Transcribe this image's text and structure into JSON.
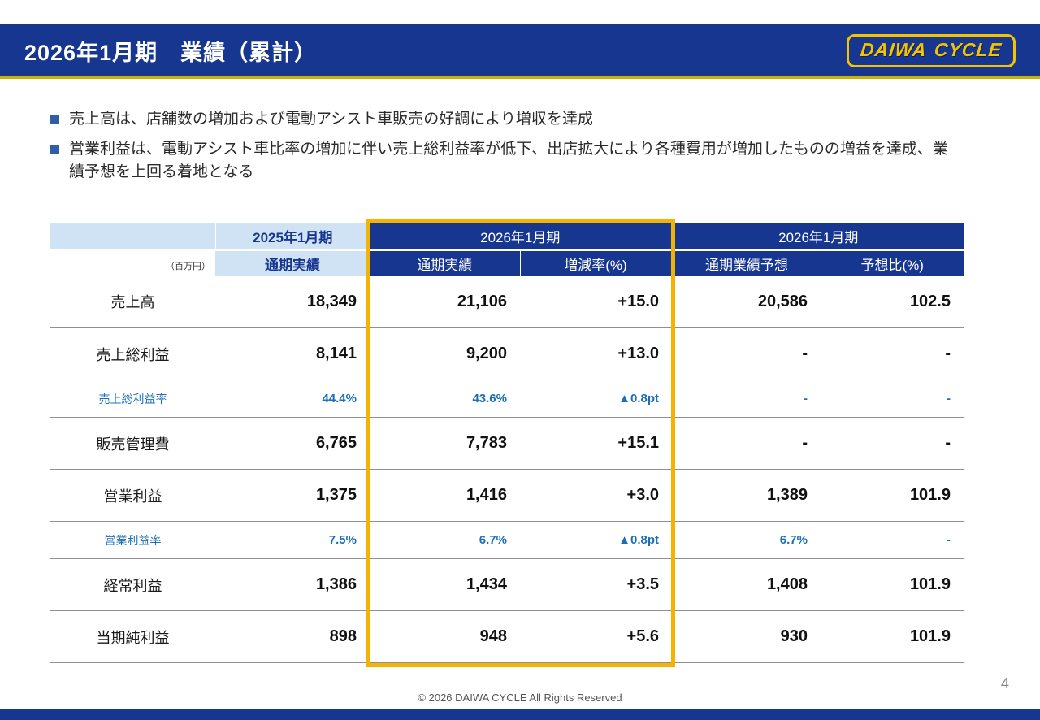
{
  "page": {
    "title": "2026年1月期　業績（累計）",
    "page_number": "4",
    "footer": "© 2026 DAIWA CYCLE All Rights Reserved"
  },
  "logo": {
    "daiwa": "DAIWA",
    "cycle": "CYCLE"
  },
  "bullets": [
    "売上高は、店舗数の増加および電動アシスト車販売の好調により増収を達成",
    "営業利益は、電動アシスト車比率の増加に伴い売上総利益率が低下、出店拡大により各種費用が増加したものの増益を達成、業績予想を上回る着地となる"
  ],
  "table": {
    "unit_label": "（百万円）",
    "col_groups": [
      {
        "label": "2025年1月期"
      },
      {
        "label": "2026年1月期"
      },
      {
        "label": "2026年1月期"
      }
    ],
    "col_headers": [
      "通期実績",
      "通期実績",
      "増減率(%)",
      "通期業績予想",
      "予想比(%)"
    ],
    "rows": [
      {
        "label": "売上高",
        "type": "normal",
        "values": [
          "18,349",
          "21,106",
          "+15.0",
          "20,586",
          "102.5"
        ]
      },
      {
        "label": "売上総利益",
        "type": "normal",
        "values": [
          "8,141",
          "9,200",
          "+13.0",
          "-",
          "-"
        ]
      },
      {
        "label": "売上総利益率",
        "type": "ratio",
        "values": [
          "44.4%",
          "43.6%",
          "▲0.8pt",
          "-",
          "-"
        ]
      },
      {
        "label": "販売管理費",
        "type": "normal",
        "values": [
          "6,765",
          "7,783",
          "+15.1",
          "-",
          "-"
        ]
      },
      {
        "label": "営業利益",
        "type": "normal",
        "values": [
          "1,375",
          "1,416",
          "+3.0",
          "1,389",
          "101.9"
        ]
      },
      {
        "label": "営業利益率",
        "type": "ratio",
        "values": [
          "7.5%",
          "6.7%",
          "▲0.8pt",
          "6.7%",
          "-"
        ]
      },
      {
        "label": "経常利益",
        "type": "normal",
        "values": [
          "1,386",
          "1,434",
          "+3.5",
          "1,408",
          "101.9"
        ]
      },
      {
        "label": "当期純利益",
        "type": "normal",
        "values": [
          "898",
          "948",
          "+5.6",
          "930",
          "101.9"
        ]
      }
    ]
  },
  "colors": {
    "brand_blue": "#17368F",
    "light_blue": "#CFE3F5",
    "accent_yellow": "#F5B301",
    "logo_gold": "#F5C400",
    "ratio_blue": "#1B6FB8"
  }
}
